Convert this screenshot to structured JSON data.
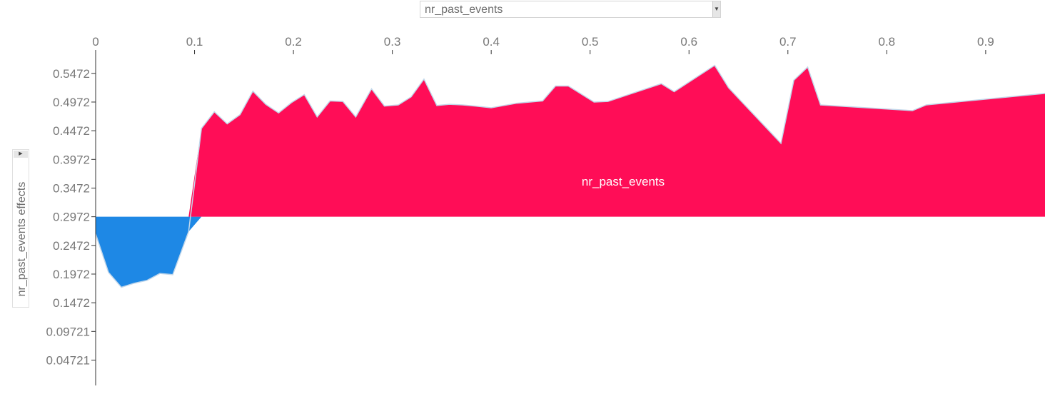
{
  "feature_select": {
    "value": "nr_past_events"
  },
  "ylabel_toggle": {
    "label": "nr_past_events effects"
  },
  "chart_data": {
    "type": "area",
    "title": "",
    "xlabel": "",
    "ylabel": "nr_past_events effects",
    "series_label": "nr_past_events",
    "baseline": 0.2972,
    "xlim": [
      0,
      0.96
    ],
    "ylim": [
      0.003,
      0.593
    ],
    "x_axis_position": "top",
    "grid": false,
    "x_ticks": [
      "0",
      "0.1",
      "0.2",
      "0.3",
      "0.4",
      "0.5",
      "0.6",
      "0.7",
      "0.8",
      "0.9"
    ],
    "y_ticks": [
      "0.5472",
      "0.4972",
      "0.4472",
      "0.3972",
      "0.3472",
      "0.2972",
      "0.2472",
      "0.1972",
      "0.1472",
      "0.09721",
      "0.04721"
    ],
    "colors": {
      "positive": "#ff0d57",
      "negative": "#1e88e5",
      "outline": "#c2d7ea",
      "axis": "#333333",
      "tick_text": "#777777"
    },
    "x": [
      0,
      0.013,
      0.026,
      0.039,
      0.052,
      0.065,
      0.078,
      0.094,
      0.107,
      0.12,
      0.133,
      0.146,
      0.159,
      0.172,
      0.185,
      0.198,
      0.211,
      0.224,
      0.237,
      0.25,
      0.263,
      0.279,
      0.292,
      0.306,
      0.319,
      0.332,
      0.345,
      0.358,
      0.371,
      0.384,
      0.4,
      0.426,
      0.452,
      0.465,
      0.478,
      0.504,
      0.518,
      0.572,
      0.585,
      0.626,
      0.64,
      0.653,
      0.693,
      0.706,
      0.72,
      0.733,
      0.826,
      0.84,
      0.96
    ],
    "values": [
      0.2672,
      0.2002,
      0.1742,
      0.1812,
      0.1862,
      0.1982,
      0.1962,
      0.2712,
      0.4512,
      0.4802,
      0.4592,
      0.4752,
      0.5162,
      0.4932,
      0.4782,
      0.4962,
      0.5102,
      0.4712,
      0.4992,
      0.4982,
      0.4712,
      0.5202,
      0.4902,
      0.4922,
      0.5062,
      0.5372,
      0.4912,
      0.4932,
      0.4922,
      0.4902,
      0.4872,
      0.4952,
      0.4992,
      0.5252,
      0.5252,
      0.4972,
      0.4982,
      0.5292,
      0.5152,
      0.5612,
      0.5222,
      0.4982,
      0.4252,
      0.5352,
      0.5582,
      0.4922,
      0.4822,
      0.4922,
      0.5122
    ]
  }
}
